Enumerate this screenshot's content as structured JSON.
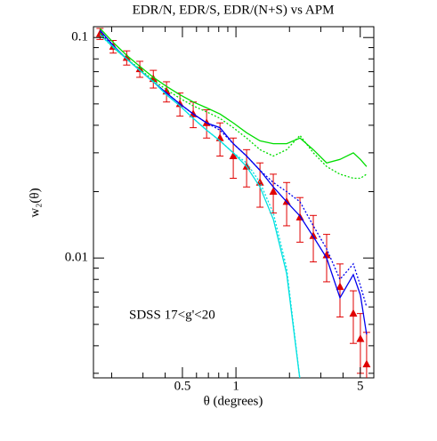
{
  "chart_data": {
    "type": "line",
    "title": "EDR/N, EDR/S, EDR/(N+S) vs APM",
    "x_label": "θ  (degrees)",
    "y_label": "w₂(θ)",
    "annotation": "SDSS  17<g'<20",
    "log_x": true,
    "log_y": true,
    "xlim": [
      0.158,
      5.96
    ],
    "ylim": [
      0.00286,
      0.112
    ],
    "xticks": [
      0.5,
      1,
      5
    ],
    "xminorticks": [
      0.2,
      0.3,
      0.4,
      0.6,
      0.7,
      0.8,
      0.9,
      2,
      3,
      4
    ],
    "yticks": [
      0.01,
      0.1
    ],
    "yminorticks": [
      0.003,
      0.004,
      0.005,
      0.006,
      0.007,
      0.008,
      0.009,
      0.02,
      0.03,
      0.04,
      0.05,
      0.06,
      0.07,
      0.08,
      0.09
    ],
    "x": [
      0.172,
      0.204,
      0.243,
      0.288,
      0.343,
      0.407,
      0.484,
      0.575,
      0.684,
      0.813,
      0.966,
      1.148,
      1.365,
      1.622,
      1.928,
      2.291,
      2.723,
      3.236,
      3.846,
      4.571,
      5.01,
      5.43
    ],
    "series": [
      {
        "style": "points",
        "color": "#e00000",
        "values": [
          0.104,
          0.091,
          0.081,
          0.072,
          0.065,
          0.057,
          0.05,
          0.045,
          0.041,
          0.035,
          0.029,
          0.026,
          0.022,
          0.02,
          0.018,
          0.0153,
          0.0126,
          0.0103,
          0.0074,
          0.0056,
          0.0043,
          0.0033
        ],
        "errors": [
          0.006,
          0.006,
          0.006,
          0.006,
          0.006,
          0.006,
          0.006,
          0.006,
          0.006,
          0.006,
          0.006,
          0.005,
          0.005,
          0.004,
          0.004,
          0.0035,
          0.003,
          0.0025,
          0.002,
          0.0015,
          0.0013,
          0.0013
        ]
      },
      {
        "style": "solid",
        "color": "#0000ee",
        "values": [
          0.108,
          0.092,
          0.08,
          0.071,
          0.063,
          0.056,
          0.05,
          0.045,
          0.041,
          0.039,
          0.033,
          0.029,
          0.025,
          0.021,
          0.018,
          0.0155,
          0.0125,
          0.01,
          0.0066,
          0.0084,
          0.0068,
          0.0045
        ]
      },
      {
        "style": "dotted",
        "color": "#0000ee",
        "values": [
          0.106,
          0.091,
          0.08,
          0.071,
          0.063,
          0.056,
          0.05,
          0.045,
          0.041,
          0.038,
          0.033,
          0.029,
          0.025,
          0.022,
          0.02,
          0.018,
          0.014,
          0.011,
          0.008,
          0.0094,
          0.0075,
          0.006
        ]
      },
      {
        "style": "solid",
        "color": "#00dd00",
        "values": [
          0.11,
          0.095,
          0.083,
          0.074,
          0.066,
          0.06,
          0.055,
          0.051,
          0.048,
          0.045,
          0.041,
          0.037,
          0.034,
          0.033,
          0.033,
          0.035,
          0.031,
          0.027,
          0.028,
          0.03,
          0.028,
          0.026
        ]
      },
      {
        "style": "dotted",
        "color": "#00dd00",
        "values": [
          0.105,
          0.09,
          0.08,
          0.072,
          0.064,
          0.058,
          0.053,
          0.049,
          0.046,
          0.043,
          0.039,
          0.035,
          0.031,
          0.029,
          0.031,
          0.036,
          0.03,
          0.026,
          0.024,
          0.023,
          0.023,
          0.024
        ]
      },
      {
        "style": "solid",
        "color": "#00e0e0",
        "values": [
          0.103,
          0.091,
          0.08,
          0.071,
          0.063,
          0.055,
          0.049,
          0.043,
          0.038,
          0.034,
          0.03,
          0.026,
          0.021,
          0.015,
          0.0085,
          0.0028,
          null,
          null,
          null,
          null,
          null,
          null
        ]
      },
      {
        "style": "dotted",
        "color": "#00e0e0",
        "values": [
          0.103,
          0.09,
          0.08,
          0.071,
          0.063,
          0.055,
          0.049,
          0.043,
          0.038,
          0.034,
          0.03,
          0.027,
          0.022,
          0.016,
          0.009,
          0.0028,
          null,
          null,
          null,
          null,
          null,
          null
        ]
      }
    ]
  }
}
